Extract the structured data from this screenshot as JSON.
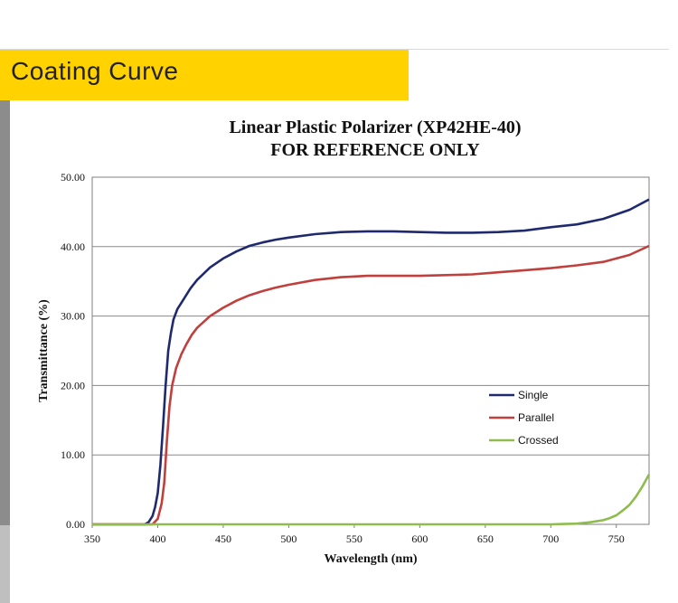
{
  "header": {
    "title": "Coating Curve"
  },
  "chart_data": {
    "type": "line",
    "title": "Linear Plastic Polarizer (XP42HE-40)",
    "subtitle": "FOR REFERENCE ONLY",
    "xlabel": "Wavelength (nm)",
    "ylabel": "Transmittance (%)",
    "xlim": [
      350,
      775
    ],
    "ylim": [
      0,
      50
    ],
    "xticks": [
      350,
      400,
      450,
      500,
      550,
      600,
      650,
      700,
      750
    ],
    "yticks": [
      0,
      10,
      20,
      30,
      40,
      50
    ],
    "ytick_labels": [
      "0.00",
      "10.00",
      "20.00",
      "30.00",
      "40.00",
      "50.00"
    ],
    "grid": "horizontal",
    "legend_position": "center-right",
    "series": [
      {
        "name": "Single",
        "color": "#1f2a6e",
        "x": [
          350,
          390,
          393,
          396,
          398,
          400,
          402,
          404,
          406,
          408,
          410,
          412,
          415,
          420,
          425,
          430,
          440,
          450,
          460,
          470,
          480,
          490,
          500,
          520,
          540,
          560,
          580,
          600,
          620,
          640,
          660,
          680,
          700,
          720,
          740,
          760,
          775
        ],
        "y": [
          0,
          0,
          0.3,
          1.2,
          2.5,
          4.5,
          8.5,
          14,
          20,
          25,
          27.5,
          29.5,
          31,
          32.5,
          34,
          35.2,
          37,
          38.3,
          39.3,
          40.1,
          40.6,
          41.0,
          41.3,
          41.8,
          42.1,
          42.2,
          42.2,
          42.1,
          42.0,
          42.0,
          42.1,
          42.3,
          42.8,
          43.2,
          44.0,
          45.3,
          46.8
        ]
      },
      {
        "name": "Parallel",
        "color": "#c0403d",
        "x": [
          350,
          396,
          400,
          403,
          405,
          407,
          409,
          411,
          414,
          418,
          422,
          426,
          430,
          440,
          450,
          460,
          470,
          480,
          490,
          500,
          520,
          540,
          560,
          580,
          600,
          620,
          640,
          660,
          680,
          700,
          720,
          740,
          760,
          775
        ],
        "y": [
          0,
          0,
          0.8,
          3,
          6,
          12,
          17,
          20,
          22.5,
          24.5,
          26,
          27.3,
          28.3,
          30,
          31.2,
          32.2,
          33,
          33.6,
          34.1,
          34.5,
          35.2,
          35.6,
          35.8,
          35.8,
          35.8,
          35.9,
          36.0,
          36.3,
          36.6,
          36.9,
          37.3,
          37.8,
          38.8,
          40.1
        ]
      },
      {
        "name": "Crossed",
        "color": "#8fbc4e",
        "x": [
          350,
          700,
          710,
          720,
          730,
          740,
          745,
          750,
          755,
          760,
          765,
          770,
          775
        ],
        "y": [
          0,
          0,
          0.05,
          0.1,
          0.3,
          0.6,
          0.9,
          1.3,
          2.0,
          2.8,
          4.0,
          5.5,
          7.2
        ]
      }
    ]
  }
}
